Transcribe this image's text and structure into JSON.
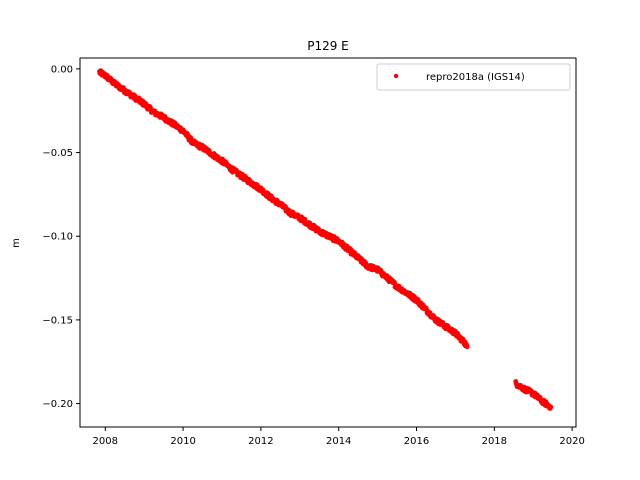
{
  "chart_data": {
    "type": "scatter",
    "title": "P129 E",
    "xlabel": "",
    "ylabel": "m",
    "xlim": [
      2007.35,
      2020.1
    ],
    "ylim": [
      -0.214,
      0.0065
    ],
    "xticks": [
      2008,
      2010,
      2012,
      2014,
      2016,
      2018,
      2020
    ],
    "xtick_labels": [
      "2008",
      "2010",
      "2012",
      "2014",
      "2016",
      "2018",
      "2020"
    ],
    "yticks": [
      0.0,
      -0.05,
      -0.1,
      -0.15,
      -0.2
    ],
    "ytick_labels": [
      "0.00",
      "−0.05",
      "−0.10",
      "−0.15",
      "−0.20"
    ],
    "grid": false,
    "legend": {
      "position": "top-right",
      "entries": [
        "repro2018a (IGS14)"
      ]
    },
    "series": [
      {
        "name": "repro2018a (IGS14)",
        "color": "#ff0000",
        "marker": "circle",
        "segments": [
          {
            "x": [
              2007.85,
              2008.0,
              2008.25,
              2008.5,
              2008.75,
              2009.0,
              2009.25,
              2009.5,
              2009.75,
              2010.0,
              2010.25,
              2010.5,
              2010.75,
              2011.0,
              2011.25,
              2011.5,
              2011.75,
              2012.0,
              2012.25,
              2012.5,
              2012.75,
              2013.0,
              2013.25,
              2013.5,
              2013.75,
              2014.0,
              2014.25,
              2014.5,
              2014.75,
              2015.0,
              2015.25,
              2015.5,
              2015.75,
              2016.0,
              2016.25,
              2016.5,
              2016.75,
              2017.0,
              2017.25,
              2017.3
            ],
            "y": [
              -0.002,
              -0.004,
              -0.009,
              -0.013,
              -0.017,
              -0.021,
              -0.026,
              -0.029,
              -0.033,
              -0.037,
              -0.044,
              -0.047,
              -0.051,
              -0.055,
              -0.06,
              -0.064,
              -0.068,
              -0.072,
              -0.077,
              -0.081,
              -0.086,
              -0.089,
              -0.093,
              -0.097,
              -0.1,
              -0.103,
              -0.108,
              -0.113,
              -0.118,
              -0.12,
              -0.125,
              -0.13,
              -0.134,
              -0.138,
              -0.144,
              -0.15,
              -0.154,
              -0.158,
              -0.164,
              -0.166
            ]
          },
          {
            "x": [
              2018.55,
              2018.75,
              2019.0,
              2019.25,
              2019.45
            ],
            "y": [
              -0.188,
              -0.191,
              -0.194,
              -0.199,
              -0.202
            ]
          }
        ]
      }
    ]
  }
}
